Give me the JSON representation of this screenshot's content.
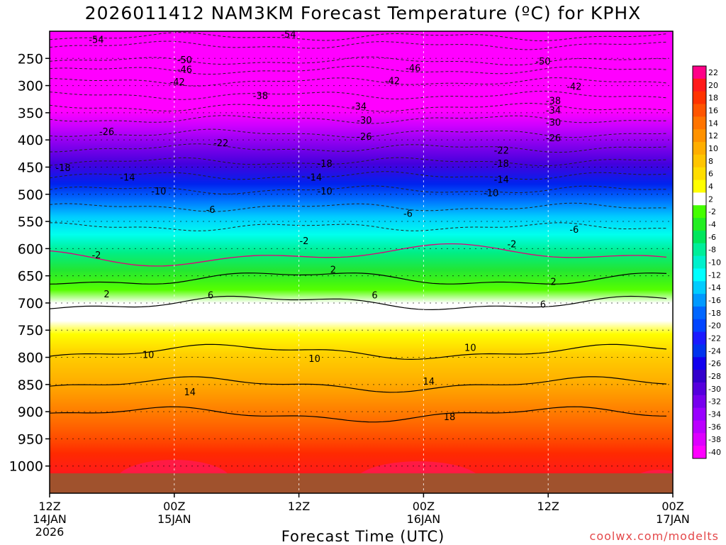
{
  "page": {
    "title": "2026011412 NAM3KM Forecast Temperature (ºC) for KPHX",
    "credit": "coolwx.com/modelts"
  },
  "chart_data": {
    "type": "heatmap",
    "title": "2026011412 NAM3KM Forecast Temperature (ºC) for KPHX",
    "xlabel": "Forecast Time (UTC)",
    "ylabel": "Pressure (hPa)",
    "x_range_hours": [
      0,
      60
    ],
    "y_range_hpa": [
      1050,
      200
    ],
    "y_ticks": [
      250,
      300,
      350,
      400,
      450,
      500,
      550,
      600,
      650,
      700,
      750,
      800,
      850,
      900,
      950,
      1000
    ],
    "x_ticks": [
      {
        "hour": 0,
        "label": "12Z",
        "sub": [
          "14JAN",
          "2026"
        ]
      },
      {
        "hour": 12,
        "label": "00Z",
        "sub": [
          "15JAN"
        ]
      },
      {
        "hour": 24,
        "label": "12Z",
        "sub": []
      },
      {
        "hour": 36,
        "label": "00Z",
        "sub": [
          "16JAN"
        ]
      },
      {
        "hour": 48,
        "label": "12Z",
        "sub": []
      },
      {
        "hour": 60,
        "label": "00Z",
        "sub": [
          "17JAN"
        ]
      }
    ],
    "colorbar": {
      "labels": [
        "22",
        "20",
        "18",
        "16",
        "14",
        "12",
        "10",
        "8",
        "6",
        "4",
        "2",
        "-2",
        "-4",
        "-6",
        "-8",
        "-10",
        "-12",
        "-14",
        "-16",
        "-18",
        "-20",
        "-22",
        "-24",
        "-26",
        "-28",
        "-30",
        "-32",
        "-34",
        "-36",
        "-38",
        "-40"
      ],
      "colors": [
        "#ff0088",
        "#ff1a1a",
        "#ff3300",
        "#ff5500",
        "#ff7400",
        "#ff9200",
        "#ffae00",
        "#ffc500",
        "#ffdd00",
        "#ffff00",
        "#ffffff",
        "#44ff00",
        "#22ee22",
        "#00e65c",
        "#00ee99",
        "#00f0cc",
        "#00ffff",
        "#00ccff",
        "#0099ff",
        "#0066ff",
        "#0044ff",
        "#1a1aff",
        "#0033ee",
        "#1100ee",
        "#3300cc",
        "#5500dd",
        "#7700ee",
        "#9900ff",
        "#bb00ff",
        "#dd00ff",
        "#ff00ff"
      ]
    },
    "temperature_profile": [
      {
        "p": 1000,
        "t": 17
      },
      {
        "p": 950,
        "t": 18
      },
      {
        "p": 900,
        "t": 17
      },
      {
        "p": 850,
        "t": 14
      },
      {
        "p": 800,
        "t": 11
      },
      {
        "p": 750,
        "t": 8
      },
      {
        "p": 700,
        "t": 6
      },
      {
        "p": 650,
        "t": 3
      },
      {
        "p": 600,
        "t": -1
      },
      {
        "p": 550,
        "t": -5
      },
      {
        "p": 500,
        "t": -10
      },
      {
        "p": 450,
        "t": -16
      },
      {
        "p": 400,
        "t": -23
      },
      {
        "p": 350,
        "t": -31
      },
      {
        "p": 300,
        "t": -41
      },
      {
        "p": 250,
        "t": -50
      },
      {
        "p": 200,
        "t": -56
      }
    ],
    "contour_labels": [
      {
        "label": "-54",
        "h": 4.5,
        "p": 215
      },
      {
        "label": "-54",
        "h": 23,
        "p": 205
      },
      {
        "label": "-50",
        "h": 13,
        "p": 252
      },
      {
        "label": "-50",
        "h": 47.5,
        "p": 255
      },
      {
        "label": "-46",
        "h": 13,
        "p": 270
      },
      {
        "label": "-46",
        "h": 35,
        "p": 267
      },
      {
        "label": "-42",
        "h": 12.3,
        "p": 293
      },
      {
        "label": "-42",
        "h": 33,
        "p": 291
      },
      {
        "label": "-42",
        "h": 50.5,
        "p": 301
      },
      {
        "label": "-38",
        "h": 20.3,
        "p": 318
      },
      {
        "label": "-38",
        "h": 48.5,
        "p": 327
      },
      {
        "label": "-34",
        "h": 29.8,
        "p": 338
      },
      {
        "label": "-34",
        "h": 48.5,
        "p": 345
      },
      {
        "label": "-30",
        "h": 30.3,
        "p": 363
      },
      {
        "label": "-30",
        "h": 48.5,
        "p": 367
      },
      {
        "label": "-26",
        "h": 5.5,
        "p": 384
      },
      {
        "label": "-26",
        "h": 30.3,
        "p": 393
      },
      {
        "label": "-26",
        "h": 48.5,
        "p": 396
      },
      {
        "label": "-22",
        "h": 16.5,
        "p": 405
      },
      {
        "label": "-22",
        "h": 43.5,
        "p": 419
      },
      {
        "label": "-18",
        "h": 1.3,
        "p": 451
      },
      {
        "label": "-18",
        "h": 26.5,
        "p": 443
      },
      {
        "label": "-18",
        "h": 43.5,
        "p": 443
      },
      {
        "label": "-14",
        "h": 7.5,
        "p": 468
      },
      {
        "label": "-14",
        "h": 25.5,
        "p": 468
      },
      {
        "label": "-14",
        "h": 43.5,
        "p": 472
      },
      {
        "label": "-10",
        "h": 10.5,
        "p": 494
      },
      {
        "label": "-10",
        "h": 26.5,
        "p": 494
      },
      {
        "label": "-10",
        "h": 42.5,
        "p": 497
      },
      {
        "label": "-6",
        "h": 15.5,
        "p": 528
      },
      {
        "label": "-6",
        "h": 34.5,
        "p": 535
      },
      {
        "label": "-6",
        "h": 50.5,
        "p": 564
      },
      {
        "label": "-2",
        "h": 4.5,
        "p": 611
      },
      {
        "label": "-2",
        "h": 24.5,
        "p": 585
      },
      {
        "label": "-2",
        "h": 44.5,
        "p": 591
      },
      {
        "label": "2",
        "h": 5.5,
        "p": 683
      },
      {
        "label": "2",
        "h": 27.3,
        "p": 638
      },
      {
        "label": "2",
        "h": 48.5,
        "p": 660
      },
      {
        "label": "6",
        "h": 15.5,
        "p": 685
      },
      {
        "label": "6",
        "h": 31.3,
        "p": 685
      },
      {
        "label": "6",
        "h": 47.5,
        "p": 702
      },
      {
        "label": "10",
        "h": 9.5,
        "p": 795
      },
      {
        "label": "10",
        "h": 25.5,
        "p": 802
      },
      {
        "label": "10",
        "h": 40.5,
        "p": 782
      },
      {
        "label": "14",
        "h": 13.5,
        "p": 863
      },
      {
        "label": "14",
        "h": 36.5,
        "p": 844
      },
      {
        "label": "18",
        "h": 38.5,
        "p": 909
      }
    ]
  }
}
